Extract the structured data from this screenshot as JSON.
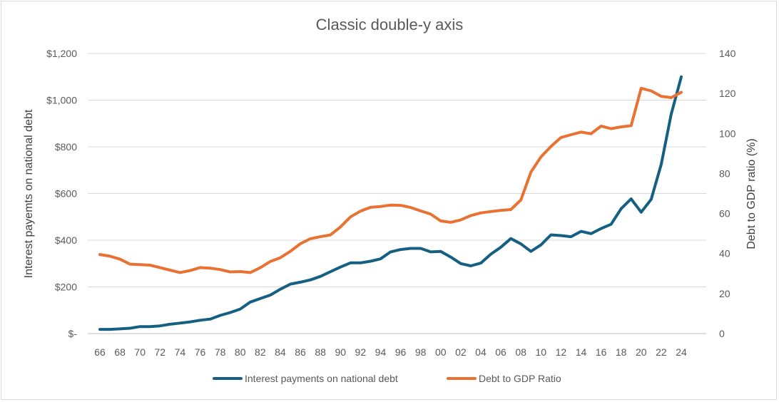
{
  "chart_data": {
    "type": "line",
    "title": "Classic double-y axis",
    "ylabel": "Interest payemts on national debt",
    "y2label": "Debt to GDP ratio (%)",
    "xlabel": "",
    "x": [
      1966,
      1967,
      1968,
      1969,
      1970,
      1971,
      1972,
      1973,
      1974,
      1975,
      1976,
      1977,
      1978,
      1979,
      1980,
      1981,
      1982,
      1983,
      1984,
      1985,
      1986,
      1987,
      1988,
      1989,
      1990,
      1991,
      1992,
      1993,
      1994,
      1995,
      1996,
      1997,
      1998,
      1999,
      2000,
      2001,
      2002,
      2003,
      2004,
      2005,
      2006,
      2007,
      2008,
      2009,
      2010,
      2011,
      2012,
      2013,
      2014,
      2015,
      2016,
      2017,
      2018,
      2019,
      2020,
      2021,
      2022,
      2023,
      2024
    ],
    "x_ticks": [
      "66",
      "68",
      "70",
      "72",
      "74",
      "76",
      "78",
      "80",
      "82",
      "84",
      "86",
      "88",
      "90",
      "92",
      "94",
      "96",
      "98",
      "00",
      "02",
      "04",
      "06",
      "08",
      "10",
      "12",
      "14",
      "16",
      "18",
      "20",
      "22",
      "24"
    ],
    "ylim": [
      0,
      1200
    ],
    "y_ticks": [
      "$-",
      "$200",
      "$400",
      "$600",
      "$800",
      "$1,000",
      "$1,200"
    ],
    "y2lim": [
      0,
      140
    ],
    "y2_ticks": [
      "0",
      "20",
      "40",
      "60",
      "80",
      "100",
      "120",
      "140"
    ],
    "grid": true,
    "legend_position": "bottom",
    "series": [
      {
        "name": "Interest payments on national debt",
        "axis": "left",
        "color": "#156082",
        "values": [
          18,
          18,
          20,
          23,
          30,
          30,
          33,
          40,
          45,
          50,
          57,
          62,
          78,
          90,
          105,
          135,
          150,
          165,
          190,
          212,
          220,
          230,
          245,
          265,
          285,
          303,
          303,
          310,
          320,
          350,
          360,
          365,
          365,
          350,
          352,
          328,
          300,
          290,
          302,
          340,
          370,
          407,
          384,
          352,
          380,
          423,
          420,
          415,
          438,
          428,
          450,
          468,
          535,
          577,
          520,
          575,
          725,
          940,
          1100
        ]
      },
      {
        "name": "Debt to GDP Ratio",
        "axis": "right",
        "color": "#E97132",
        "values": [
          39.5,
          38.7,
          37.2,
          34.7,
          34.5,
          34.2,
          33,
          31.7,
          30.5,
          31.5,
          33,
          32.7,
          32,
          30.8,
          31,
          30.5,
          32.9,
          36,
          37.9,
          41.1,
          44.9,
          47.4,
          48.4,
          49.3,
          53.3,
          58.3,
          61.2,
          63.1,
          63.5,
          64.2,
          64.1,
          63,
          61.3,
          59.7,
          56.3,
          55.6,
          56.8,
          59,
          60.3,
          61,
          61.6,
          62,
          66.8,
          80.7,
          88.3,
          93.5,
          98,
          99.4,
          100.7,
          99.9,
          103.7,
          102.4,
          103.3,
          103.9,
          122.6,
          121.3,
          118.6,
          117.9,
          120.6
        ]
      }
    ]
  }
}
